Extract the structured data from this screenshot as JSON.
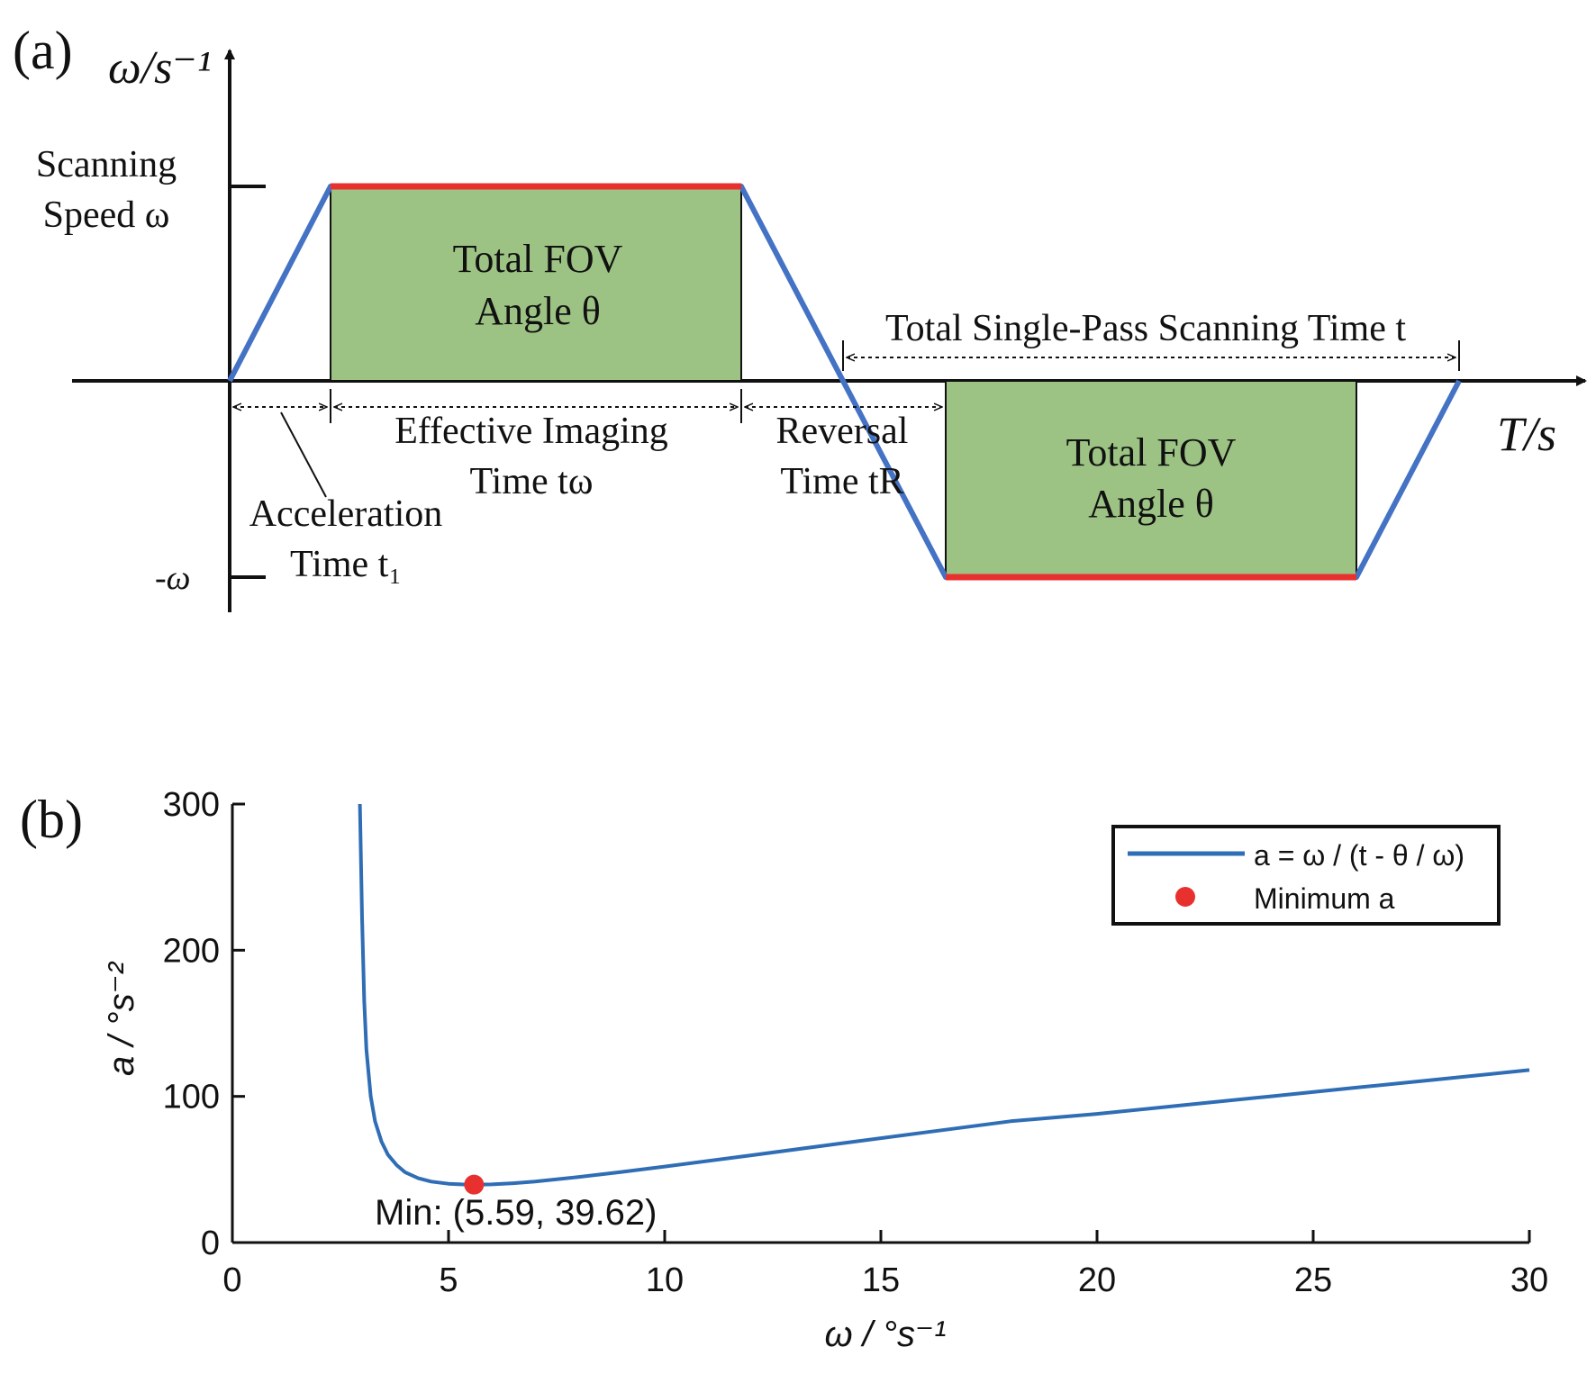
{
  "panel_a": {
    "label": "(a)",
    "y_axis_unit": "ω/s⁻¹",
    "y_axis_desc_line1": "Scanning",
    "y_axis_desc_line2": "Speed ω",
    "neg_tick_label": "-ω",
    "x_axis_unit": "T/s",
    "fov_top_line1": "Total FOV",
    "fov_top_line2": "Angle θ",
    "fov_bottom_line1": "Total FOV",
    "fov_bottom_line2": "Angle θ",
    "single_pass_label": "Total Single-Pass Scanning Time t",
    "effective_line1": "Effective Imaging",
    "effective_line2": "Time tω",
    "reversal_line1": "Reversal",
    "reversal_line2": "Time tR",
    "accel_line1": "Acceleration",
    "accel_line2": "Time t₁",
    "colors": {
      "speed_profile": "#4472c4",
      "constant_speed": "#e8312f",
      "fov_fill": "#9dc384"
    }
  },
  "panel_b": {
    "label": "(b)",
    "chart_data": {
      "type": "line",
      "xlabel": "ω / °s⁻¹",
      "ylabel": "a / °s⁻²",
      "xlim": [
        0,
        30
      ],
      "ylim": [
        0,
        300
      ],
      "x_ticks": [
        "0",
        "5",
        "10",
        "15",
        "20",
        "25",
        "30"
      ],
      "y_ticks": [
        "0",
        "100",
        "200",
        "300"
      ],
      "legend_position": "top-right",
      "series": [
        {
          "name": "a = ω / (t - θ / ω)",
          "color": "#2f6db5",
          "x": [
            2.95,
            3.0,
            3.05,
            3.1,
            3.2,
            3.3,
            3.45,
            3.6,
            3.8,
            4.0,
            4.3,
            4.6,
            5.0,
            5.3,
            5.59,
            6.0,
            6.5,
            7.0,
            8.0,
            9.0,
            10.0,
            12.0,
            14.0,
            16.0,
            18.0,
            20.0,
            22.0,
            24.0,
            26.0,
            28.0,
            30.0
          ],
          "y": [
            300,
            222,
            165,
            132,
            100,
            83,
            69,
            60,
            53,
            48,
            44,
            41.7,
            40.2,
            39.8,
            39.62,
            39.8,
            40.6,
            41.7,
            44.8,
            48.3,
            52.0,
            59.7,
            67.5,
            75.3,
            83.0,
            88.0,
            94.0,
            100.0,
            106.0,
            112.0,
            118.0
          ]
        }
      ],
      "minimum_point": {
        "name": "Minimum a",
        "x": 5.59,
        "y": 39.62,
        "color": "#e8312f"
      },
      "annotation": "Min: (5.59, 39.62)"
    }
  }
}
